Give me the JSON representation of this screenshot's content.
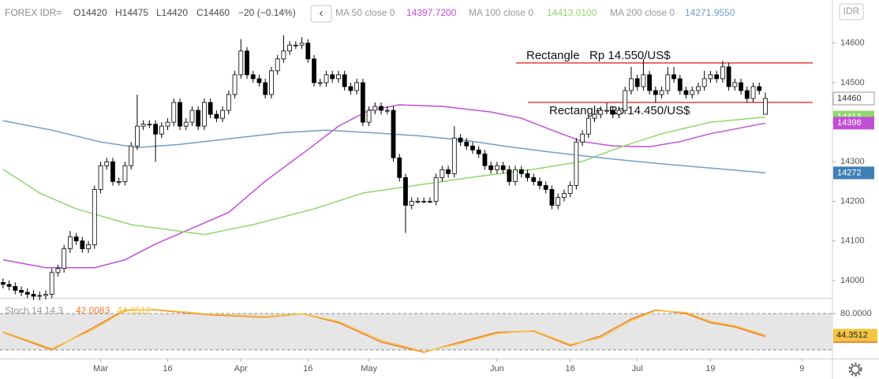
{
  "header": {
    "symbol": "FOREX IDR=",
    "open": "O14420",
    "high": "H14475",
    "low": "L14420",
    "close": "C14460",
    "change": "−20 (−0.14%)",
    "collapse": "‹"
  },
  "chart_data": [
    {
      "type": "candlestick",
      "axis_label": "IDR",
      "up_color": "#ffffff",
      "down_color": "#000000",
      "candles": [
        [
          13995,
          14005,
          13980,
          13990
        ],
        [
          13990,
          14000,
          13975,
          13985
        ],
        [
          13985,
          13995,
          13965,
          13975
        ],
        [
          13975,
          13985,
          13960,
          13970
        ],
        [
          13970,
          13980,
          13955,
          13965
        ],
        [
          13965,
          13975,
          13950,
          13960
        ],
        [
          13960,
          13972,
          13950,
          13962
        ],
        [
          13962,
          13975,
          13952,
          13965
        ],
        [
          13965,
          14030,
          13955,
          14020
        ],
        [
          14020,
          14040,
          14010,
          14030
        ],
        [
          14030,
          14090,
          14020,
          14080
        ],
        [
          14080,
          14125,
          14070,
          14110
        ],
        [
          14110,
          14120,
          14090,
          14100
        ],
        [
          14100,
          14110,
          14070,
          14080
        ],
        [
          14080,
          14100,
          14070,
          14090
        ],
        [
          14090,
          14240,
          14080,
          14230
        ],
        [
          14230,
          14300,
          14220,
          14290
        ],
        [
          14290,
          14310,
          14280,
          14300
        ],
        [
          14300,
          14310,
          14240,
          14250
        ],
        [
          14250,
          14260,
          14240,
          14250
        ],
        [
          14250,
          14300,
          14240,
          14290
        ],
        [
          14290,
          14350,
          14280,
          14340
        ],
        [
          14340,
          14470,
          14330,
          14390
        ],
        [
          14390,
          14405,
          14380,
          14395
        ],
        [
          14395,
          14405,
          14385,
          14395
        ],
        [
          14395,
          14405,
          14300,
          14370
        ],
        [
          14370,
          14400,
          14360,
          14390
        ],
        [
          14390,
          14410,
          14380,
          14400
        ],
        [
          14400,
          14460,
          14390,
          14450
        ],
        [
          14450,
          14460,
          14380,
          14390
        ],
        [
          14390,
          14410,
          14380,
          14400
        ],
        [
          14400,
          14440,
          14390,
          14430
        ],
        [
          14430,
          14440,
          14380,
          14390
        ],
        [
          14390,
          14460,
          14380,
          14450
        ],
        [
          14450,
          14460,
          14410,
          14420
        ],
        [
          14420,
          14430,
          14400,
          14410
        ],
        [
          14410,
          14440,
          14400,
          14430
        ],
        [
          14430,
          14480,
          14420,
          14470
        ],
        [
          14470,
          14530,
          14460,
          14520
        ],
        [
          14520,
          14610,
          14510,
          14580
        ],
        [
          14580,
          14590,
          14510,
          14520
        ],
        [
          14520,
          14530,
          14500,
          14510
        ],
        [
          14510,
          14520,
          14490,
          14500
        ],
        [
          14500,
          14510,
          14460,
          14470
        ],
        [
          14470,
          14540,
          14460,
          14530
        ],
        [
          14530,
          14570,
          14520,
          14560
        ],
        [
          14560,
          14620,
          14550,
          14580
        ],
        [
          14580,
          14605,
          14570,
          14595
        ],
        [
          14595,
          14605,
          14585,
          14595
        ],
        [
          14595,
          14615,
          14585,
          14600
        ],
        [
          14600,
          14610,
          14550,
          14560
        ],
        [
          14560,
          14570,
          14490,
          14500
        ],
        [
          14500,
          14510,
          14490,
          14500
        ],
        [
          14500,
          14530,
          14490,
          14520
        ],
        [
          14520,
          14530,
          14500,
          14510
        ],
        [
          14510,
          14530,
          14500,
          14520
        ],
        [
          14520,
          14530,
          14480,
          14490
        ],
        [
          14490,
          14500,
          14470,
          14480
        ],
        [
          14480,
          14510,
          14470,
          14500
        ],
        [
          14500,
          14510,
          14390,
          14400
        ],
        [
          14400,
          14440,
          14390,
          14430
        ],
        [
          14430,
          14450,
          14420,
          14440
        ],
        [
          14440,
          14450,
          14420,
          14430
        ],
        [
          14430,
          14440,
          14420,
          14430
        ],
        [
          14430,
          14440,
          14300,
          14310
        ],
        [
          14310,
          14320,
          14250,
          14260
        ],
        [
          14260,
          14270,
          14120,
          14190
        ],
        [
          14190,
          14210,
          14180,
          14200
        ],
        [
          14200,
          14210,
          14195,
          14200
        ],
        [
          14200,
          14210,
          14195,
          14200
        ],
        [
          14200,
          14210,
          14195,
          14200
        ],
        [
          14200,
          14270,
          14190,
          14260
        ],
        [
          14260,
          14290,
          14250,
          14280
        ],
        [
          14280,
          14290,
          14260,
          14270
        ],
        [
          14270,
          14390,
          14260,
          14360
        ],
        [
          14360,
          14370,
          14340,
          14350
        ],
        [
          14350,
          14360,
          14330,
          14340
        ],
        [
          14340,
          14350,
          14320,
          14330
        ],
        [
          14330,
          14340,
          14310,
          14320
        ],
        [
          14320,
          14330,
          14280,
          14290
        ],
        [
          14290,
          14300,
          14270,
          14280
        ],
        [
          14280,
          14300,
          14270,
          14290
        ],
        [
          14290,
          14300,
          14270,
          14280
        ],
        [
          14280,
          14290,
          14240,
          14250
        ],
        [
          14250,
          14290,
          14240,
          14280
        ],
        [
          14280,
          14290,
          14260,
          14270
        ],
        [
          14270,
          14280,
          14250,
          14260
        ],
        [
          14260,
          14270,
          14240,
          14250
        ],
        [
          14250,
          14260,
          14230,
          14240
        ],
        [
          14240,
          14250,
          14220,
          14230
        ],
        [
          14230,
          14240,
          14180,
          14190
        ],
        [
          14190,
          14220,
          14180,
          14210
        ],
        [
          14210,
          14230,
          14200,
          14220
        ],
        [
          14220,
          14250,
          14210,
          14240
        ],
        [
          14240,
          14360,
          14230,
          14350
        ],
        [
          14350,
          14380,
          14340,
          14370
        ],
        [
          14370,
          14420,
          14360,
          14410
        ],
        [
          14410,
          14430,
          14400,
          14420
        ],
        [
          14420,
          14440,
          14410,
          14430
        ],
        [
          14430,
          14450,
          14420,
          14430
        ],
        [
          14430,
          14440,
          14410,
          14420
        ],
        [
          14420,
          14440,
          14410,
          14430
        ],
        [
          14430,
          14490,
          14420,
          14480
        ],
        [
          14480,
          14540,
          14470,
          14510
        ],
        [
          14510,
          14520,
          14480,
          14490
        ],
        [
          14490,
          14560,
          14480,
          14520
        ],
        [
          14520,
          14530,
          14470,
          14480
        ],
        [
          14480,
          14490,
          14450,
          14470
        ],
        [
          14470,
          14490,
          14460,
          14480
        ],
        [
          14480,
          14540,
          14470,
          14520
        ],
        [
          14520,
          14540,
          14500,
          14510
        ],
        [
          14510,
          14520,
          14470,
          14480
        ],
        [
          14480,
          14490,
          14460,
          14470
        ],
        [
          14470,
          14490,
          14460,
          14480
        ],
        [
          14480,
          14500,
          14470,
          14490
        ],
        [
          14490,
          14530,
          14480,
          14510
        ],
        [
          14510,
          14530,
          14500,
          14520
        ],
        [
          14520,
          14530,
          14500,
          14510
        ],
        [
          14510,
          14555,
          14500,
          14540
        ],
        [
          14540,
          14550,
          14480,
          14490
        ],
        [
          14490,
          14510,
          14480,
          14500
        ],
        [
          14500,
          14510,
          14470,
          14480
        ],
        [
          14480,
          14490,
          14450,
          14460
        ],
        [
          14460,
          14500,
          14450,
          14490
        ],
        [
          14490,
          14500,
          14470,
          14480
        ],
        [
          14420,
          14475,
          14420,
          14460
        ]
      ],
      "series": [
        {
          "name": "MA 50 close 0",
          "legend_value": "14397.7200",
          "color": "#c14fd6",
          "x": [
            0,
            7,
            15,
            20,
            25,
            31,
            37,
            43,
            50,
            55,
            60,
            65,
            72,
            80,
            85,
            90,
            95,
            100,
            106,
            111,
            116,
            125
          ],
          "values": [
            14052,
            14032,
            14032,
            14052,
            14092,
            14132,
            14172,
            14251,
            14331,
            14390,
            14430,
            14444,
            14440,
            14426,
            14410,
            14380,
            14351,
            14340,
            14338,
            14351,
            14371,
            14397.72
          ]
        },
        {
          "name": "MA 100 close 0",
          "legend_value": "14413.0100",
          "color": "#8fd86c",
          "x": [
            0,
            6,
            12,
            21,
            33,
            41,
            51,
            59,
            68,
            77,
            87,
            95,
            102,
            108,
            116,
            125
          ],
          "values": [
            14281,
            14221,
            14181,
            14141,
            14116,
            14141,
            14181,
            14221,
            14241,
            14261,
            14281,
            14301,
            14341,
            14371,
            14400,
            14413.01
          ]
        },
        {
          "name": "MA 200 close 0",
          "legend_value": "14271.9550",
          "color": "#6f9fc6",
          "x": [
            0,
            8,
            16,
            22,
            29,
            38,
            46,
            53,
            60,
            68,
            76,
            82,
            90,
            98,
            107,
            116,
            125
          ],
          "values": [
            14404,
            14380,
            14350,
            14336,
            14344,
            14360,
            14374,
            14380,
            14374,
            14366,
            14354,
            14340,
            14324,
            14310,
            14296,
            14284,
            14271.955
          ]
        }
      ],
      "annotations": [
        {
          "label": "Rectangle   Rp 14.550/US$",
          "value": 14550,
          "color": "#e0403a"
        },
        {
          "label": "Rectangle  Rp 14.450/US$",
          "value": 14450,
          "color": "#e0403a"
        }
      ],
      "tags": [
        {
          "value": 14460,
          "label": "14460",
          "color": "#ffffff"
        },
        {
          "value": 14413.01,
          "label": "14413",
          "color": "#8fd86c"
        },
        {
          "value": 14397.72,
          "label": "14398",
          "color": "#c14fd6"
        },
        {
          "value": 14271.955,
          "label": "14272",
          "color": "#3f7fb5"
        }
      ],
      "xlim": [
        -0.5,
        136
      ],
      "xticks": [
        {
          "value": 16,
          "label": "Mar"
        },
        {
          "value": 27,
          "label": "16"
        },
        {
          "value": 39,
          "label": "Apr"
        },
        {
          "value": 50,
          "label": "16"
        },
        {
          "value": 60,
          "label": "May"
        },
        {
          "value": 81,
          "label": "Jun"
        },
        {
          "value": 93,
          "label": "16"
        },
        {
          "value": 104,
          "label": "Jul"
        },
        {
          "value": 116,
          "label": "19"
        },
        {
          "value": 131,
          "label": "9"
        }
      ],
      "ylim": [
        13956,
        14709
      ],
      "yticks": [
        14000,
        14100,
        14200,
        14300,
        14400,
        14500,
        14600
      ]
    },
    {
      "type": "line",
      "title": "Stoch 14 14 3",
      "band": [
        20,
        80
      ],
      "series": [
        {
          "legend_value": "42.0083",
          "color": "#f07a2e",
          "x": [
            0,
            8,
            15,
            20,
            25,
            34,
            43,
            49,
            55,
            62,
            69,
            75,
            81,
            87,
            93,
            98,
            103,
            107,
            112,
            116,
            120,
            125
          ],
          "values": [
            49,
            20,
            58,
            86,
            86,
            78,
            74,
            80,
            65,
            33,
            16,
            33,
            49,
            51,
            27,
            43,
            71,
            86,
            80,
            65,
            58,
            42.0083
          ]
        },
        {
          "legend_value": "44.3512",
          "color": "#f5c542",
          "x": [
            0,
            8,
            15,
            20,
            25,
            34,
            43,
            49,
            55,
            62,
            69,
            75,
            81,
            87,
            93,
            98,
            103,
            107,
            112,
            116,
            120,
            125
          ],
          "values": [
            50,
            22,
            55,
            85,
            87,
            79,
            75,
            80,
            67,
            36,
            17,
            31,
            47,
            52,
            29,
            40,
            68,
            85,
            82,
            67,
            60,
            44.3512
          ]
        }
      ],
      "xlim": [
        -0.5,
        136
      ],
      "ylim": [
        5.7,
        103.5
      ],
      "yticks": [
        {
          "value": 80,
          "label": "80.0000"
        }
      ]
    }
  ]
}
